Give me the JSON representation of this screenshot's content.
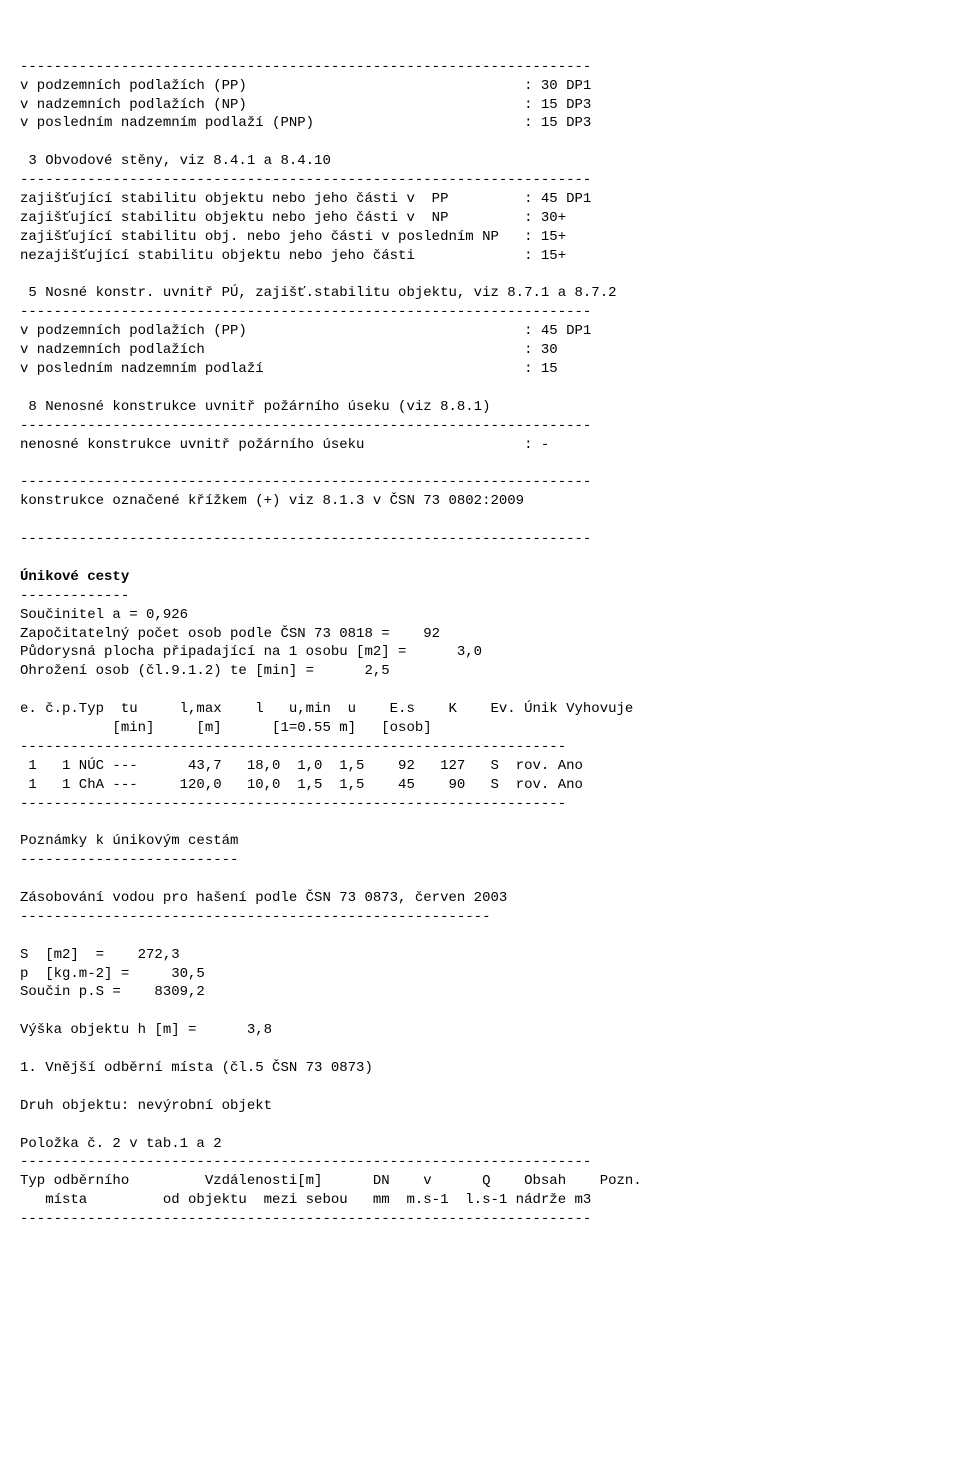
{
  "hr": "--------------------------------------------------------------------",
  "hr65": "-----------------------------------------------------------------",
  "hr56": "--------------------------------------------------------",
  "hr13": "-------------",
  "hr26": "--------------------------",
  "l1": "v podzemních podlažích (PP)                                 : 30 DP1",
  "l2": "v nadzemních podlažích (NP)                                 : 15 DP3",
  "l3": "v posledním nadzemním podlaží (PNP)                         : 15 DP3",
  "l4": " 3 Obvodové stěny, viz 8.4.1 a 8.4.10",
  "l5": "zajišťující stabilitu objektu nebo jeho části v  PP         : 45 DP1",
  "l6": "zajišťující stabilitu objektu nebo jeho části v  NP         : 30+",
  "l7": "zajišťující stabilitu obj. nebo jeho části v posledním NP   : 15+",
  "l8": "nezajišťující stabilitu objektu nebo jeho části             : 15+",
  "l9": " 5 Nosné konstr. uvnitř PÚ, zajišť.stabilitu objektu, viz 8.7.1 a 8.7.2",
  "l10": "v podzemních podlažích (PP)                                 : 45 DP1",
  "l11": "v nadzemních podlažích                                      : 30",
  "l12": "v posledním nadzemním podlaží                               : 15",
  "l13": " 8 Nenosné konstrukce uvnitř požárního úseku (viz 8.8.1)",
  "l14": "nenosné konstrukce uvnitř požárního úseku                   : -",
  "l15": "konstrukce označené křížkem (+) viz 8.1.3 v ČSN 73 0802:2009",
  "uc_heading": "Únikové cesty",
  "uc1": "Součinitel a = 0,926",
  "uc2": "Započitatelný počet osob podle ČSN 73 0818 =    92",
  "uc3": "Půdorysná plocha připadající na 1 osobu [m2] =      3,0",
  "uc4": "Ohrožení osob (čl.9.1.2) te [min] =      2,5",
  "th1": "e. č.p.Typ  tu     l,max    l   u,min  u    E.s    K    Ev. Únik Vyhovuje",
  "th2": "           [min]     [m]      [1=0.55 m]   [osob]",
  "tr1": " 1   1 NÚC ---      43,7   18,0  1,0  1,5    92   127   S  rov. Ano",
  "tr2": " 1   1 ChA ---     120,0   10,0  1,5  1,5    45    90   S  rov. Ano",
  "pn": "Poznámky k únikovým cestám",
  "zv": "Zásobování vodou pro hašení podle ČSN 73 0873, červen 2003",
  "s1": "S  [m2]  =    272,3",
  "s2": "p  [kg.m-2] =     30,5",
  "s3": "Součin p.S =    8309,2",
  "s4": "Výška objektu h [m] =      3,8",
  "s5": "1. Vnější odběrní místa (čl.5 ČSN 73 0873)",
  "s6": "Druh objektu: nevýrobní objekt",
  "s7": "Položka č. 2 v tab.1 a 2",
  "ft1": "Typ odběrního         Vzdálenosti[m]      DN    v      Q    Obsah    Pozn.",
  "ft2": "   místa         od objektu  mezi sebou   mm  m.s-1  l.s-1 nádrže m3"
}
